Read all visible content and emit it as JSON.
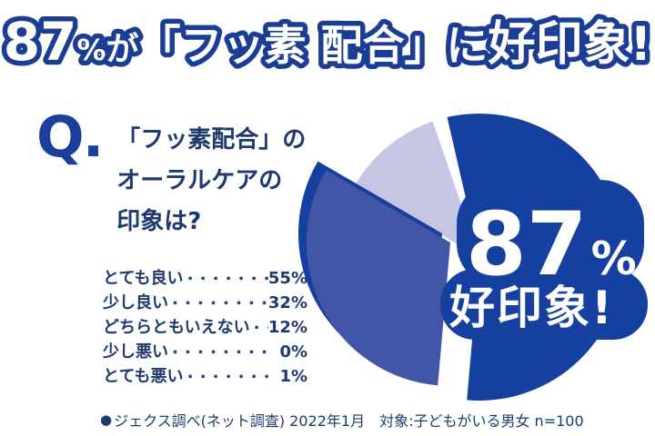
{
  "colors": {
    "pie_dark_blue": "#16409f",
    "pie_medium_blue": "#4156a6",
    "pie_lavender": "#c4c6e3",
    "banner_outline_blue": "#1b3e94",
    "navy_text": "#1e3a6e",
    "q_mark_blue": "#1a3f9c",
    "background": "#ffffff"
  },
  "banner": {
    "percent": "87",
    "percent_sign": "%",
    "particle": "が",
    "middle": "「フッ素 配合」に",
    "tail": "好印象!"
  },
  "question": {
    "q_mark": "Q.",
    "lines": [
      "「フッ素配合」の",
      "オーラルケアの",
      "印象は?"
    ]
  },
  "answers": [
    {
      "label": "とても良い",
      "dots": "・・・・・・・・・・・・",
      "value": "55%"
    },
    {
      "label": "少し良い",
      "dots": "・・・・・・・・・・・・・",
      "value": "32%"
    },
    {
      "label": "どちらともいえない",
      "dots": "・・・",
      "value": "12%"
    },
    {
      "label": "少し悪い",
      "dots": "・・・・・・・・・・・・・・",
      "value": "0%"
    },
    {
      "label": "とても悪い",
      "dots": "・・・・・・・・・・・・",
      "value": "1%"
    }
  ],
  "pie_label": {
    "percent": "87",
    "percent_sign": "%",
    "text": "好印象!"
  },
  "footer": {
    "bullet": "●",
    "text": "ジェクス調べ(ネット調査) 2022年1月　対象:子どもがいる男女 n=100"
  },
  "chart_data": {
    "type": "pie",
    "title": "87%が「フッ素 配合」に好印象!",
    "question": "「フッ素配合」のオーラルケアの印象は?",
    "categories": [
      "とても良い",
      "少し良い",
      "どちらともいえない",
      "少し悪い",
      "とても悪い"
    ],
    "values": [
      55,
      32,
      12,
      0,
      1
    ],
    "unit": "%",
    "slice_colors": [
      "#16409f",
      "#4156a6",
      "#c4c6e3",
      "#c4c6e3",
      "#c4c6e3"
    ],
    "highlight_value": 87,
    "highlight_label": "好印象!",
    "explode_index": 1,
    "start_angle_deg": -13,
    "legend_position": "left-list",
    "source": "ジェクス調べ(ネット調査) 2022年1月",
    "sample": "対象:子どもがいる男女 n=100"
  }
}
